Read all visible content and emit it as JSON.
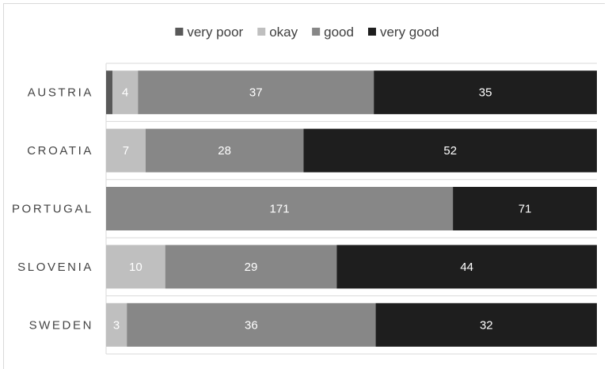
{
  "chart_data": {
    "type": "bar",
    "orientation": "horizontal",
    "stacked": true,
    "normalized": true,
    "categories": [
      "AUSTRIA",
      "CROATIA",
      "PORTUGAL",
      "SLOVENIA",
      "SWEDEN"
    ],
    "series": [
      {
        "name": "very poor",
        "color": "#595959",
        "values": [
          1,
          0,
          0,
          0,
          0
        ]
      },
      {
        "name": "okay",
        "color": "#bfbfbf",
        "values": [
          4,
          7,
          0,
          10,
          3
        ]
      },
      {
        "name": "good",
        "color": "#878787",
        "values": [
          37,
          28,
          171,
          29,
          36
        ]
      },
      {
        "name": "very good",
        "color": "#1e1e1e",
        "values": [
          35,
          52,
          71,
          44,
          32
        ]
      }
    ],
    "legend_position": "top",
    "grid": "horizontal"
  }
}
